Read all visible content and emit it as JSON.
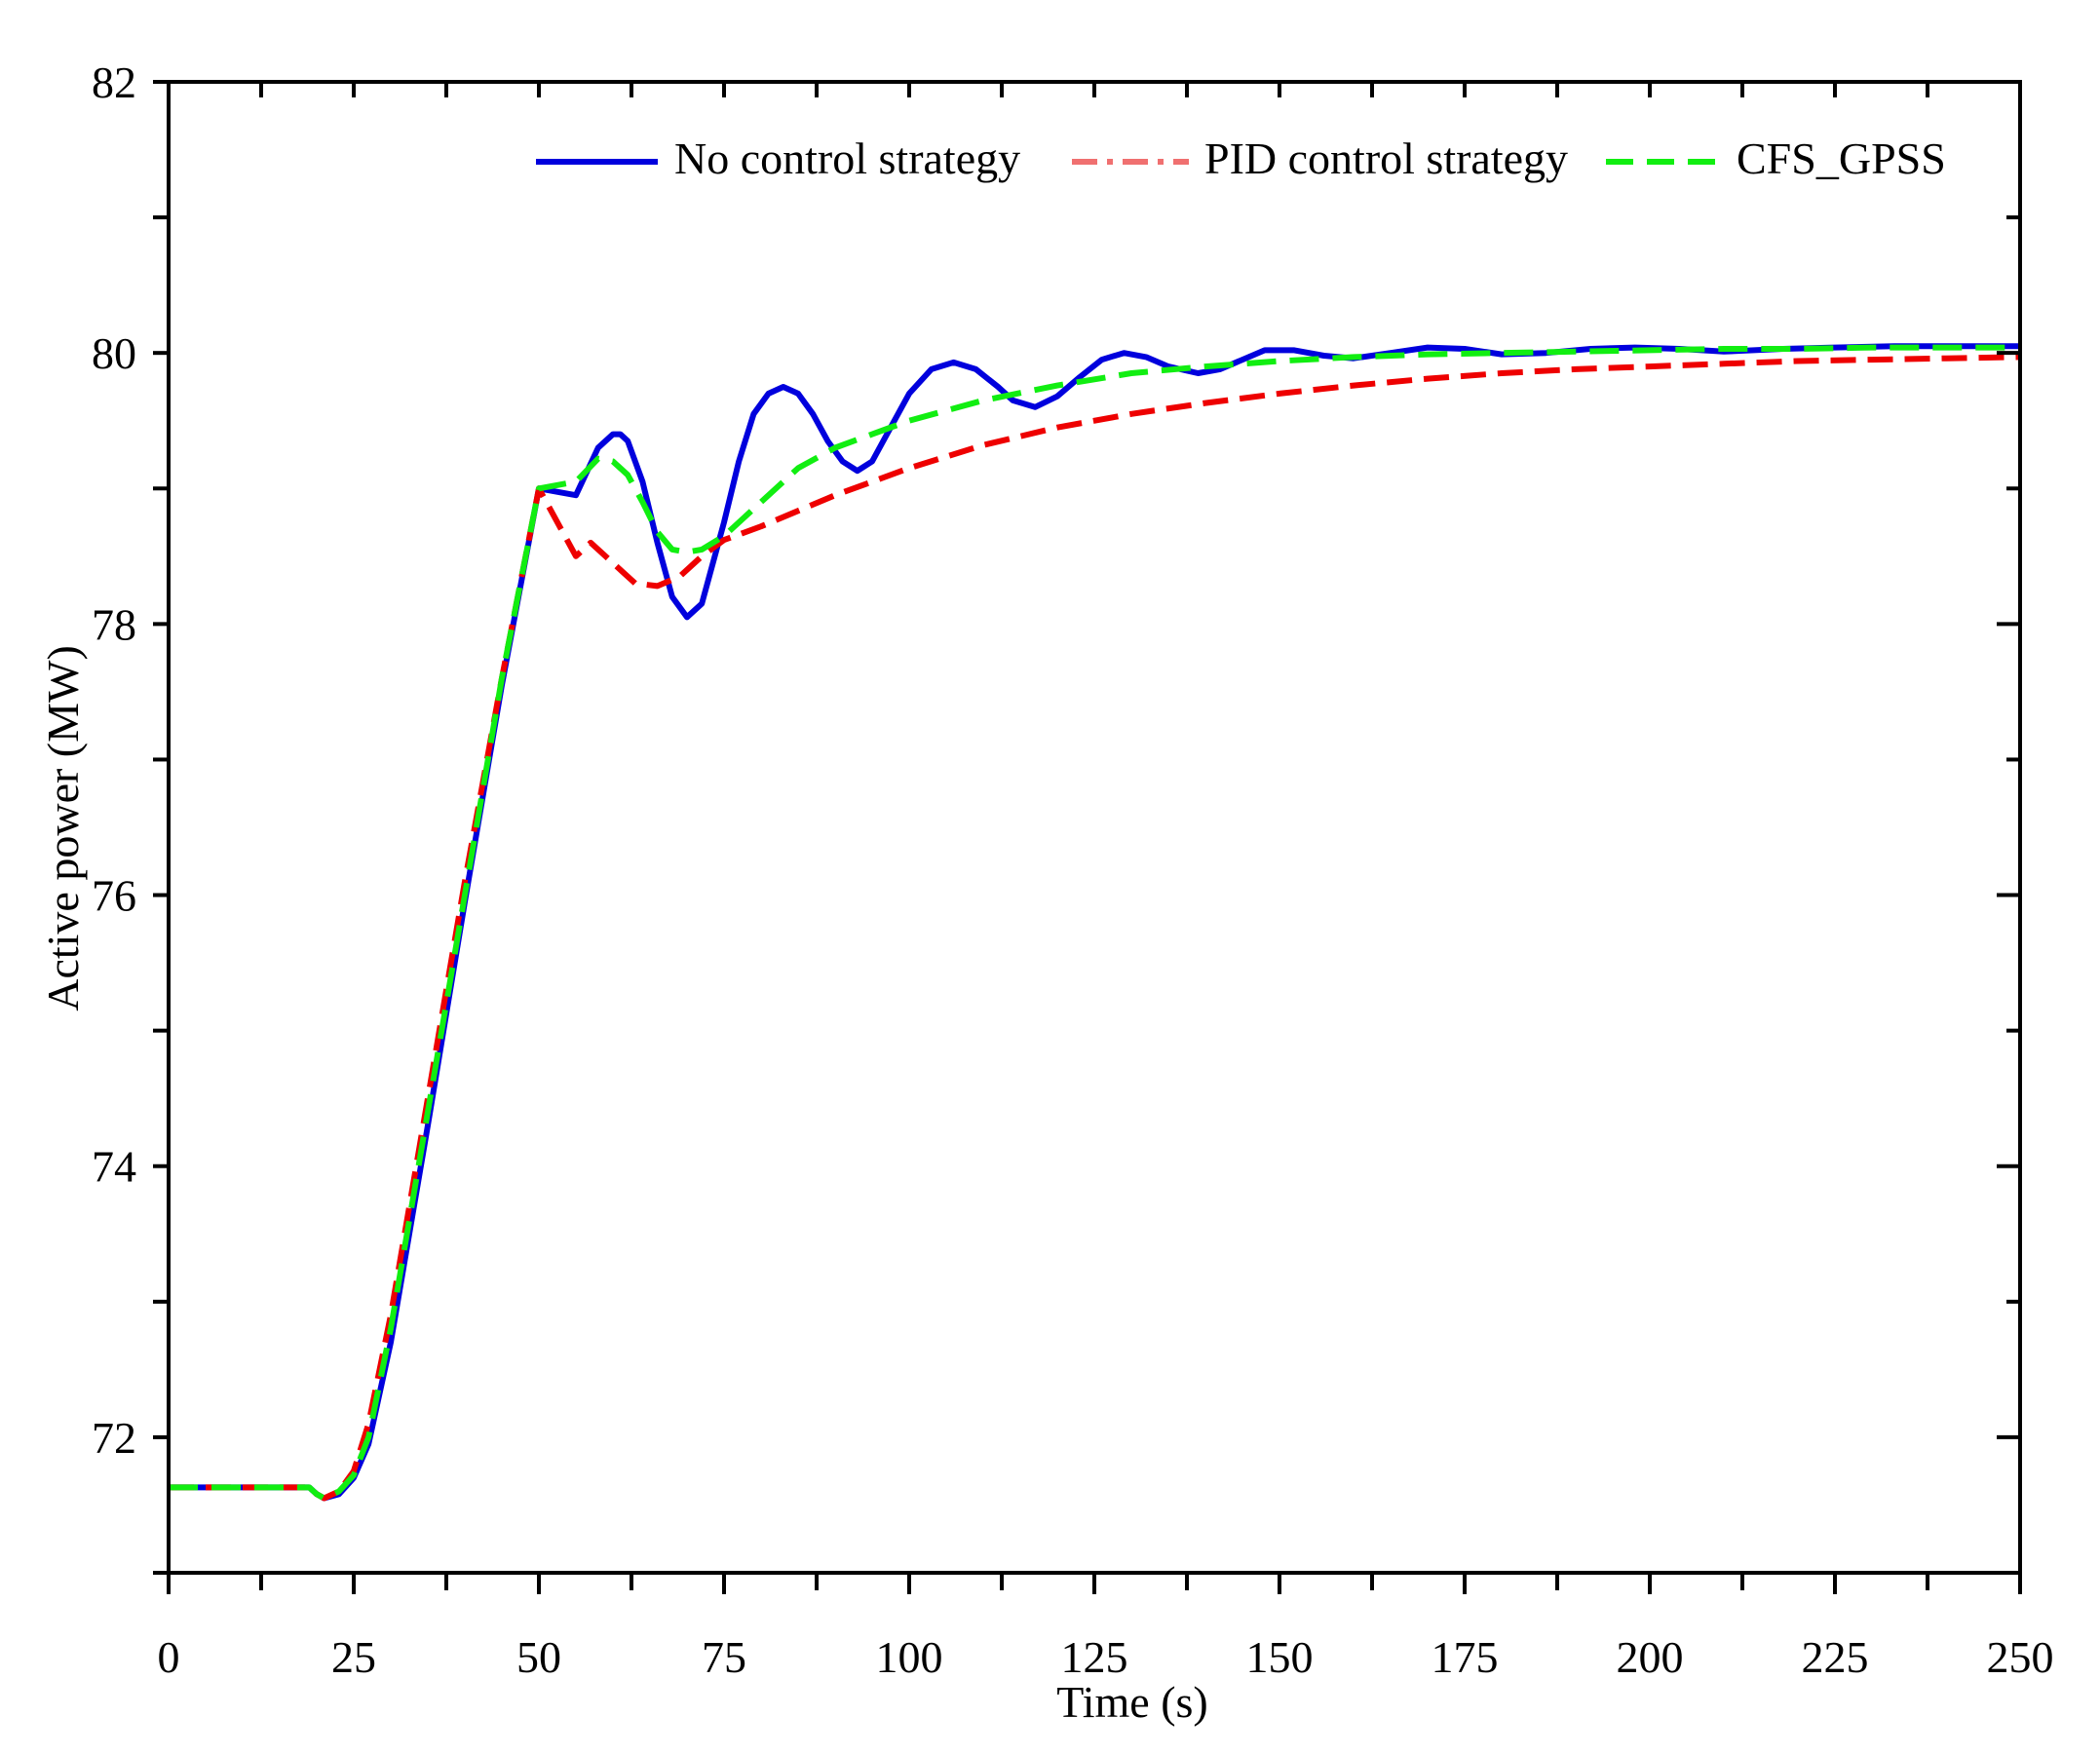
{
  "chart_data": {
    "type": "line",
    "title": "",
    "xlabel": "Time (s)",
    "ylabel": "Active power (MW)",
    "xlim": [
      0,
      250
    ],
    "ylim": [
      71,
      82
    ],
    "xticks": [
      0,
      25,
      50,
      75,
      100,
      125,
      150,
      175,
      200,
      225,
      250
    ],
    "yticks": [
      72,
      74,
      76,
      78,
      80,
      82
    ],
    "grid": false,
    "legend_position": "top-right",
    "series": [
      {
        "name": "No control strategy",
        "color": "#0000dd",
        "x": [
          0,
          19,
          20,
          21,
          23,
          25,
          27,
          30,
          35,
          40,
          45,
          50,
          55,
          58,
          60,
          61,
          62,
          64,
          66,
          68,
          70,
          72,
          73,
          75,
          77,
          79,
          81,
          83,
          85,
          87,
          89,
          91,
          93,
          95,
          97,
          100,
          103,
          106,
          109,
          112,
          114,
          117,
          120,
          123,
          126,
          129,
          132,
          135,
          139,
          142,
          145,
          148,
          152,
          156,
          160,
          165,
          170,
          175,
          180,
          186,
          192,
          198,
          204,
          210,
          218,
          225,
          233,
          240,
          250
        ],
        "y": [
          71.63,
          71.63,
          71.58,
          71.55,
          71.58,
          71.7,
          71.95,
          72.7,
          74.3,
          75.95,
          77.55,
          79.0,
          78.95,
          79.3,
          79.4,
          79.4,
          79.35,
          79.05,
          78.6,
          78.2,
          78.05,
          78.15,
          78.35,
          78.75,
          79.2,
          79.55,
          79.7,
          79.75,
          79.7,
          79.55,
          79.35,
          79.2,
          79.13,
          79.2,
          79.4,
          79.7,
          79.88,
          79.93,
          79.88,
          79.75,
          79.65,
          79.6,
          79.68,
          79.82,
          79.95,
          80.0,
          79.97,
          79.9,
          79.85,
          79.88,
          79.95,
          80.02,
          80.02,
          79.98,
          79.96,
          80.0,
          80.04,
          80.03,
          79.99,
          80.0,
          80.03,
          80.04,
          80.03,
          80.01,
          80.03,
          80.04,
          80.05,
          80.05,
          80.05
        ]
      },
      {
        "name": "PID control strategy",
        "color": "#ee0000",
        "x": [
          0,
          19,
          20,
          21,
          23,
          25,
          27,
          30,
          35,
          40,
          45,
          50,
          55,
          57,
          60,
          63,
          66,
          69,
          72,
          75,
          80,
          90,
          100,
          110,
          120,
          130,
          140,
          150,
          160,
          170,
          180,
          190,
          200,
          210,
          220,
          230,
          240,
          250
        ],
        "y": [
          71.63,
          71.63,
          71.58,
          71.55,
          71.6,
          71.75,
          72.1,
          72.9,
          74.5,
          76.1,
          77.6,
          79.0,
          78.5,
          78.6,
          78.45,
          78.3,
          78.28,
          78.35,
          78.5,
          78.62,
          78.72,
          78.95,
          79.15,
          79.32,
          79.45,
          79.55,
          79.63,
          79.7,
          79.76,
          79.81,
          79.85,
          79.88,
          79.9,
          79.92,
          79.94,
          79.95,
          79.96,
          79.97
        ]
      },
      {
        "name": "CFS_GPSS",
        "color": "#11ee11",
        "x": [
          0,
          19,
          20,
          21,
          23,
          25,
          27,
          30,
          35,
          40,
          45,
          50,
          55,
          58,
          60,
          62,
          64,
          66,
          68,
          70,
          72,
          75,
          80,
          85,
          90,
          95,
          100,
          110,
          120,
          130,
          140,
          150,
          160,
          170,
          180,
          190,
          200,
          210,
          220,
          230,
          240,
          250
        ],
        "y": [
          71.63,
          71.63,
          71.58,
          71.55,
          71.6,
          71.72,
          72.0,
          72.8,
          74.4,
          76.0,
          77.6,
          79.0,
          79.05,
          79.22,
          79.2,
          79.1,
          78.9,
          78.68,
          78.55,
          78.53,
          78.55,
          78.65,
          78.9,
          79.15,
          79.3,
          79.4,
          79.5,
          79.65,
          79.76,
          79.85,
          79.9,
          79.94,
          79.97,
          79.99,
          80.0,
          80.01,
          80.02,
          80.03,
          80.03,
          80.04,
          80.04,
          80.04
        ]
      }
    ]
  }
}
